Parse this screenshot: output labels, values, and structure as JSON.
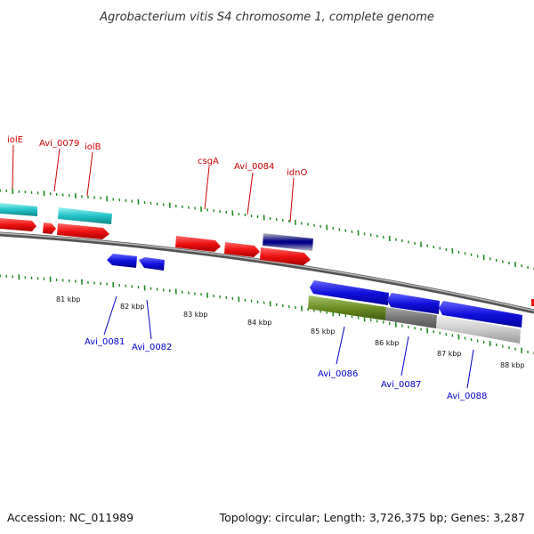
{
  "title": "Agrobacterium vitis S4 chromosome 1, complete genome",
  "footer": {
    "accession": "Accession: NC_011989",
    "stats": "Topology: circular; Length: 3,726,375 bp; Genes: 3,287"
  },
  "colors": {
    "forward_cds": "#ee1111",
    "reverse_cds": "#1111dd",
    "ncrna": "#22c4c8",
    "ruler_ticks": "#1e8a1e",
    "backbone": "#777777",
    "label_red": "#cc0000",
    "label_blue": "#0000cc"
  },
  "scale": {
    "unit": "kbp",
    "tick_labels": [
      "81 kbp",
      "82 kbp",
      "83 kbp",
      "84 kbp",
      "85 kbp",
      "86 kbp",
      "87 kbp",
      "88 kbp"
    ]
  },
  "gene_labels": {
    "top": [
      "iolE",
      "Avi_0079",
      "iolB",
      "csgA",
      "Avi_0084",
      "idnO"
    ],
    "bottom": [
      "Avi_0081",
      "Avi_0082",
      "Avi_0086",
      "Avi_0087",
      "Avi_0088"
    ]
  }
}
